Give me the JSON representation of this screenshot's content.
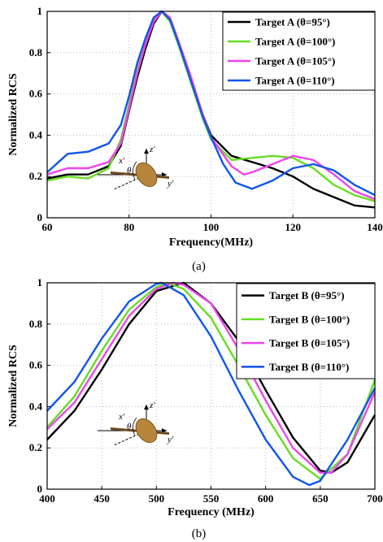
{
  "chart_data": [
    {
      "panel": "a",
      "type": "line",
      "caption": "(a)",
      "xlabel": "Frequency(MHz)",
      "ylabel": "Normalized RCS",
      "xlim": [
        60,
        140
      ],
      "ylim": [
        0,
        1
      ],
      "xticks": [
        60,
        80,
        100,
        120,
        140
      ],
      "yticks": [
        0,
        0.2,
        0.4,
        0.6,
        0.8,
        1
      ],
      "grid": true,
      "legend_position": "top-right",
      "inset_labels": [
        "z′",
        "x′",
        "θ",
        "y′"
      ],
      "series": [
        {
          "name": "Target A (θ=95°)",
          "color": "#000000",
          "x": [
            60,
            65,
            70,
            75,
            78,
            80,
            82,
            84,
            86,
            88,
            90,
            92,
            95,
            98,
            100,
            105,
            110,
            115,
            120,
            125,
            130,
            135,
            140
          ],
          "y": [
            0.19,
            0.21,
            0.21,
            0.25,
            0.35,
            0.52,
            0.68,
            0.82,
            0.94,
            1.0,
            0.96,
            0.85,
            0.68,
            0.5,
            0.4,
            0.3,
            0.27,
            0.24,
            0.2,
            0.14,
            0.1,
            0.06,
            0.05
          ]
        },
        {
          "name": "Target A (θ=100°)",
          "color": "#66dd22",
          "x": [
            60,
            65,
            70,
            75,
            78,
            80,
            82,
            84,
            86,
            88,
            90,
            92,
            95,
            98,
            100,
            105,
            110,
            115,
            120,
            125,
            130,
            135,
            140
          ],
          "y": [
            0.18,
            0.2,
            0.19,
            0.24,
            0.38,
            0.55,
            0.72,
            0.86,
            0.96,
            1.0,
            0.95,
            0.84,
            0.66,
            0.48,
            0.38,
            0.28,
            0.29,
            0.3,
            0.29,
            0.24,
            0.16,
            0.11,
            0.08
          ]
        },
        {
          "name": "Target A (θ=105°)",
          "color": "#ee44ee",
          "x": [
            60,
            65,
            70,
            75,
            78,
            80,
            82,
            84,
            86,
            88,
            90,
            92,
            95,
            98,
            100,
            105,
            108,
            110,
            115,
            120,
            125,
            130,
            135,
            140
          ],
          "y": [
            0.21,
            0.24,
            0.24,
            0.27,
            0.36,
            0.53,
            0.7,
            0.84,
            0.95,
            1.0,
            0.97,
            0.86,
            0.69,
            0.5,
            0.39,
            0.25,
            0.21,
            0.22,
            0.26,
            0.3,
            0.28,
            0.21,
            0.13,
            0.09
          ]
        },
        {
          "name": "Target A (θ=110°)",
          "color": "#1155ee",
          "x": [
            60,
            65,
            70,
            75,
            78,
            80,
            82,
            84,
            86,
            88,
            90,
            92,
            95,
            98,
            100,
            103,
            106,
            110,
            115,
            120,
            125,
            130,
            135,
            140
          ],
          "y": [
            0.22,
            0.31,
            0.32,
            0.36,
            0.45,
            0.59,
            0.75,
            0.87,
            0.97,
            1.0,
            0.96,
            0.85,
            0.67,
            0.49,
            0.39,
            0.26,
            0.17,
            0.14,
            0.18,
            0.24,
            0.26,
            0.23,
            0.16,
            0.11
          ]
        }
      ]
    },
    {
      "panel": "b",
      "type": "line",
      "caption": "(b)",
      "xlabel": "Frequency (MHz)",
      "ylabel": "Normalized RCS",
      "xlim": [
        400,
        700
      ],
      "ylim": [
        0,
        1
      ],
      "xticks": [
        400,
        450,
        500,
        550,
        600,
        650,
        700
      ],
      "yticks": [
        0,
        0.2,
        0.4,
        0.6,
        0.8,
        1
      ],
      "grid": true,
      "legend_position": "top-right",
      "inset_labels": [
        "z′",
        "x′",
        "θ",
        "y′"
      ],
      "series": [
        {
          "name": "Target B (θ=95°)",
          "color": "#000000",
          "x": [
            400,
            425,
            450,
            475,
            500,
            525,
            550,
            575,
            600,
            625,
            650,
            660,
            675,
            700
          ],
          "y": [
            0.24,
            0.38,
            0.58,
            0.8,
            0.96,
            1.0,
            0.9,
            0.72,
            0.48,
            0.25,
            0.09,
            0.08,
            0.13,
            0.36
          ]
        },
        {
          "name": "Target B (θ=100°)",
          "color": "#66dd22",
          "x": [
            400,
            425,
            450,
            475,
            500,
            510,
            525,
            550,
            575,
            600,
            625,
            650,
            675,
            700
          ],
          "y": [
            0.3,
            0.45,
            0.67,
            0.87,
            0.98,
            1.0,
            0.97,
            0.83,
            0.6,
            0.36,
            0.15,
            0.05,
            0.17,
            0.53
          ]
        },
        {
          "name": "Target B (θ=105°)",
          "color": "#ee44ee",
          "x": [
            400,
            425,
            450,
            475,
            500,
            515,
            525,
            550,
            575,
            600,
            625,
            650,
            660,
            675,
            700
          ],
          "y": [
            0.29,
            0.42,
            0.63,
            0.84,
            0.97,
            1.0,
            0.99,
            0.9,
            0.68,
            0.43,
            0.2,
            0.08,
            0.08,
            0.17,
            0.47
          ]
        },
        {
          "name": "Target B (θ=110°)",
          "color": "#1155ee",
          "x": [
            400,
            425,
            450,
            475,
            500,
            505,
            525,
            550,
            575,
            600,
            625,
            640,
            650,
            675,
            700
          ],
          "y": [
            0.38,
            0.52,
            0.73,
            0.91,
            0.995,
            1.0,
            0.94,
            0.74,
            0.48,
            0.24,
            0.06,
            0.02,
            0.04,
            0.24,
            0.49
          ]
        }
      ]
    }
  ]
}
